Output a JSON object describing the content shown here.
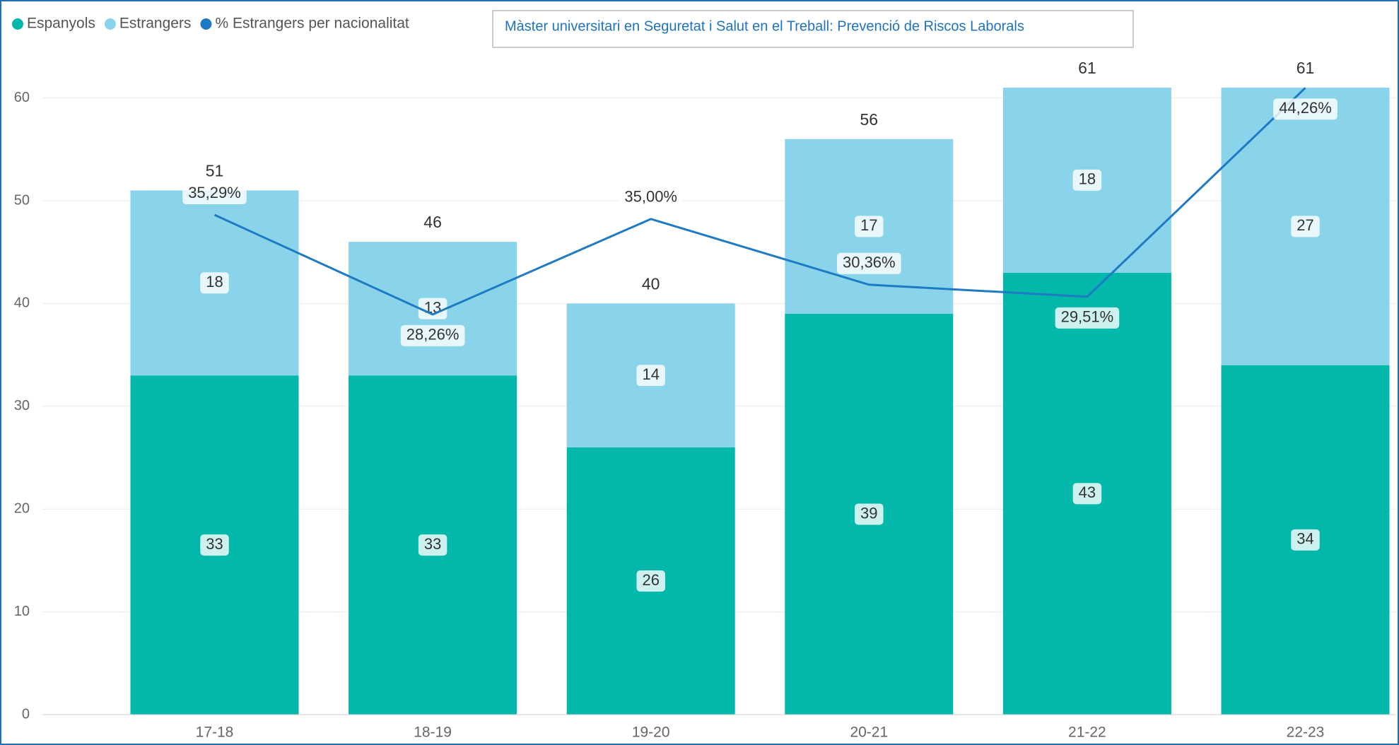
{
  "chart_data": {
    "type": "bar",
    "stacked": true,
    "title": "Màster universitari en Seguretat i Salut en el Treball: Prevenció de Riscos Laborals",
    "categories": [
      "17-18",
      "18-19",
      "19-20",
      "20-21",
      "21-22",
      "22-23"
    ],
    "series": [
      {
        "name": "Espanyols",
        "type": "bar",
        "color": "#01b8aa",
        "values": [
          33,
          33,
          26,
          39,
          43,
          34
        ]
      },
      {
        "name": "Estrangers",
        "type": "bar",
        "color": "#8ad4eb",
        "values": [
          18,
          13,
          14,
          17,
          18,
          27
        ]
      },
      {
        "name": "% Estrangers per nacionalitat",
        "type": "line",
        "axis": "y2",
        "color": "#1f7ac4",
        "values": [
          35.29,
          28.26,
          35.0,
          30.36,
          29.51,
          44.26
        ],
        "value_labels": [
          "35,29%",
          "28,26%",
          "35,00%",
          "30,36%",
          "29,51%",
          "44,26%"
        ]
      }
    ],
    "totals": [
      51,
      46,
      40,
      56,
      61,
      61
    ],
    "ylim": [
      0,
      62
    ],
    "yticks": [
      0,
      10,
      20,
      30,
      40,
      50,
      60
    ],
    "y2lim": [
      0,
      45
    ],
    "grid": true,
    "legend": "top-left"
  }
}
